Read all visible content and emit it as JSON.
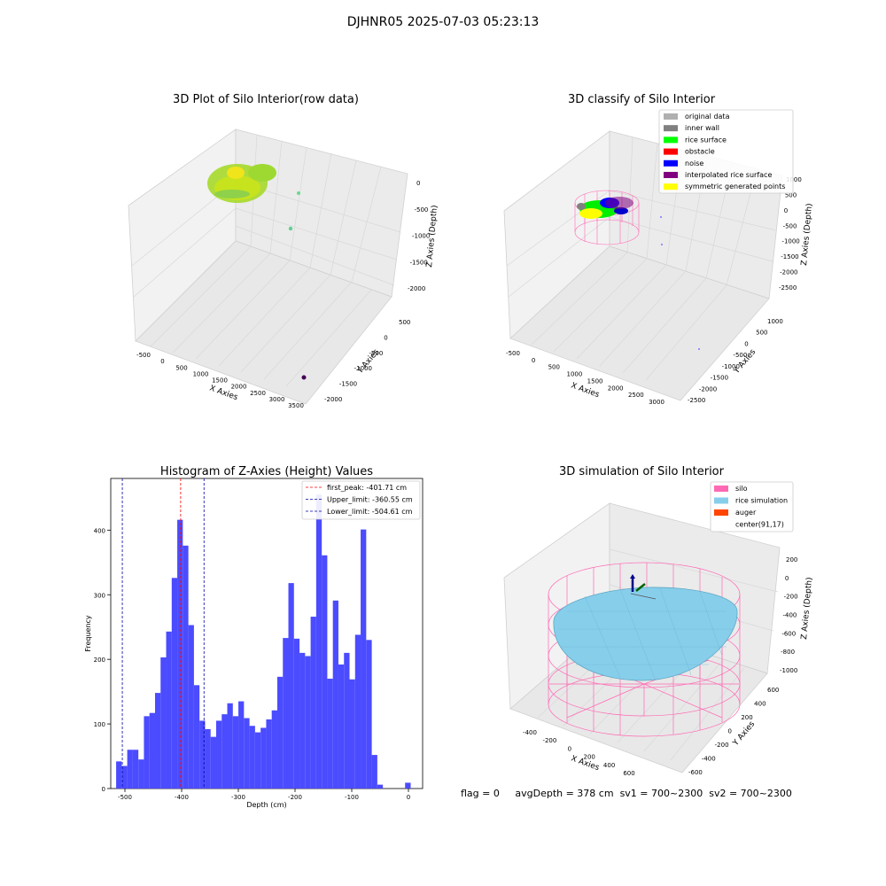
{
  "suptitle": "DJHNR05 2025-07-03 05:23:13",
  "status": {
    "flag": "flag = 0",
    "avg": "avgDepth = 378 cm",
    "sv1": "sv1 = 700~2300",
    "sv2": "sv2 = 700~2300"
  },
  "plot1": {
    "title": "3D Plot of Silo Interior(row data)",
    "xlabel": "X Axies",
    "ylabel": "Y Axies",
    "zlabel": "Z Axies (Depth)",
    "xticks": [
      "-500",
      "0",
      "500",
      "1000",
      "1500",
      "2000",
      "2500",
      "3000",
      "3500"
    ],
    "yticks": [
      "-2000",
      "-1500",
      "-1000",
      "-500",
      "0",
      "500"
    ],
    "zticks": [
      "0",
      "-500",
      "-1000",
      "-1500",
      "-2000"
    ]
  },
  "plot2": {
    "title": "3D classify of Silo Interior",
    "xlabel": "X Axies",
    "ylabel": "Y Axies",
    "zlabel": "Z Axies (Depth)",
    "xticks": [
      "-500",
      "0",
      "500",
      "1000",
      "1500",
      "2000",
      "2500",
      "3000"
    ],
    "yticks": [
      "-2500",
      "-2000",
      "-1500",
      "-1000",
      "-500",
      "0",
      "500",
      "1000"
    ],
    "zticks": [
      "1000",
      "500",
      "0",
      "-500",
      "-1000",
      "-1500",
      "-2000",
      "-2500"
    ],
    "legend": [
      {
        "label": "original data",
        "color": "#b0b0b0"
      },
      {
        "label": "inner wall",
        "color": "#808080"
      },
      {
        "label": "rice surface",
        "color": "#00ff00"
      },
      {
        "label": "obstacle",
        "color": "#ff0000"
      },
      {
        "label": "noise",
        "color": "#0000ff"
      },
      {
        "label": "interpolated rice surface",
        "color": "#800080"
      },
      {
        "label": "symmetric generated points",
        "color": "#ffff00"
      }
    ]
  },
  "plot4": {
    "title": "3D simulation of Silo Interior",
    "xlabel": "X Axies",
    "ylabel": "Y Axies",
    "zlabel": "Z Axies (Depth)",
    "xticks": [
      "-400",
      "-200",
      "0",
      "200",
      "400",
      "600"
    ],
    "yticks": [
      "-600",
      "-400",
      "-200",
      "0",
      "200",
      "400",
      "600"
    ],
    "zticks": [
      "200",
      "0",
      "-200",
      "-400",
      "-600",
      "-800",
      "-1000"
    ],
    "legend": [
      {
        "label": "silo",
        "color": "#ff69b4"
      },
      {
        "label": "rice simulation",
        "color": "#87ceeb"
      },
      {
        "label": "auger",
        "color": "#ff4500"
      },
      {
        "label": "center(91,17)",
        "color": "#ffffff"
      }
    ]
  },
  "chart_data": {
    "type": "bar",
    "title": "Histogram of Z-Axies (Height) Values",
    "xlabel": "Depth (cm)",
    "ylabel": "Frequency",
    "xlim": [
      -525,
      25
    ],
    "ylim": [
      0,
      480
    ],
    "xticks": [
      -500,
      -400,
      -300,
      -200,
      -100,
      0
    ],
    "yticks": [
      0,
      100,
      200,
      300,
      400
    ],
    "bin_width": 9.8,
    "bin_starts": [
      -515.5,
      -505.7,
      -495.9,
      -486.1,
      -476.3,
      -466.5,
      -456.7,
      -446.9,
      -437.1,
      -427.3,
      -417.5,
      -407.7,
      -397.9,
      -388.1,
      -378.3,
      -368.5,
      -358.7,
      -348.9,
      -339.1,
      -329.3,
      -319.5,
      -309.7,
      -299.9,
      -290.1,
      -280.3,
      -270.5,
      -260.7,
      -250.9,
      -241.1,
      -231.3,
      -221.5,
      -211.7,
      -201.9,
      -192.1,
      -182.3,
      -172.5,
      -162.7,
      -152.9,
      -143.1,
      -133.3,
      -123.5,
      -113.7,
      -103.9,
      -94.1,
      -84.3,
      -74.5,
      -64.7,
      -54.9,
      -45.1,
      -35.3,
      -25.5,
      -15.7,
      -5.9
    ],
    "values": [
      42,
      35,
      60,
      60,
      45,
      112,
      117,
      148,
      203,
      243,
      326,
      416,
      376,
      253,
      160,
      105,
      92,
      80,
      105,
      115,
      132,
      112,
      135,
      109,
      97,
      87,
      94,
      107,
      121,
      173,
      233,
      318,
      232,
      210,
      205,
      266,
      455,
      361,
      170,
      291,
      192,
      210,
      169,
      238,
      401,
      230,
      52,
      6,
      0,
      0,
      0,
      0,
      9
    ],
    "lines": [
      {
        "name": "first_peak: -401.71 cm",
        "x": -401.71,
        "color": "#ff0000"
      },
      {
        "name": "Upper_limit: -360.55 cm",
        "x": -360.55,
        "color": "#0000aa"
      },
      {
        "name": "Lower_limit: -504.61 cm",
        "x": -504.61,
        "color": "#0000aa"
      }
    ],
    "bar_color": "#4b4bff",
    "grid": false,
    "legend_position": "top-right"
  }
}
